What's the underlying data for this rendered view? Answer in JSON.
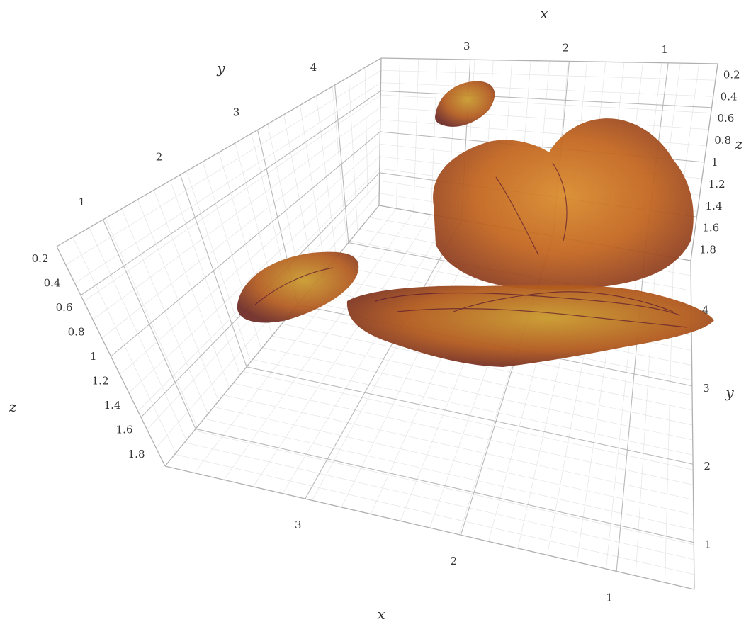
{
  "chart_data": {
    "type": "volume-3d",
    "title": "",
    "axes": {
      "x": {
        "label": "x",
        "range": [
          0.5,
          3.9
        ],
        "ticks": [
          "1",
          "2",
          "3"
        ]
      },
      "y": {
        "label": "y",
        "range": [
          0.4,
          4.6
        ],
        "ticks": [
          "1",
          "2",
          "3",
          "4"
        ]
      },
      "z": {
        "label": "z",
        "range": [
          0.1,
          1.9
        ],
        "ticks": [
          "0.2",
          "0.4",
          "0.6",
          "0.8",
          "1",
          "1.2",
          "1.4",
          "1.6",
          "1.8"
        ]
      }
    },
    "grid": true,
    "colorscale": [
      "#5a1830",
      "#9a3f1e",
      "#c8681c",
      "#e69a26",
      "#b89a2a"
    ],
    "blobs": [
      {
        "name": "large-upper-blob",
        "center": [
          1.6,
          3.0,
          1.1
        ],
        "extent": [
          1.3,
          1.3,
          0.7
        ]
      },
      {
        "name": "flat-lower-blob",
        "center": [
          2.0,
          3.2,
          1.7
        ],
        "extent": [
          1.6,
          1.0,
          0.15
        ]
      },
      {
        "name": "small-top-blob",
        "center": [
          2.6,
          4.2,
          0.5
        ],
        "extent": [
          0.35,
          0.3,
          0.2
        ]
      },
      {
        "name": "left-disc-blob",
        "center": [
          3.6,
          2.0,
          0.9
        ],
        "extent": [
          0.4,
          0.6,
          0.2
        ]
      }
    ]
  }
}
